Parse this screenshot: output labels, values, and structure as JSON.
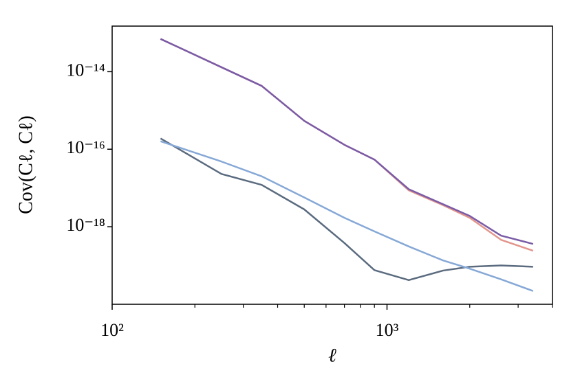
{
  "chart_data": {
    "type": "line",
    "x_label": "ℓ",
    "y_label": "Cov(Cℓ, Cℓ)",
    "x": [
      150,
      250,
      350,
      500,
      700,
      900,
      1200,
      1600,
      2000,
      2600,
      3400
    ],
    "series": [
      {
        "color": "#5b6b7f",
        "values": [
          1.9e-16,
          2.3e-17,
          1.2e-17,
          2.8e-18,
          3.8e-19,
          7.6e-20,
          4.2e-20,
          7.4e-20,
          9.3e-20,
          1e-19,
          9.3e-20
        ]
      },
      {
        "color": "#86a8d6",
        "values": [
          1.6e-16,
          4.8e-17,
          2e-17,
          5.7e-18,
          1.7e-18,
          7.6e-19,
          3.1e-19,
          1.35e-19,
          8.3e-20,
          4.4e-20,
          2.2e-20
        ]
      },
      {
        "color": "#e2958c",
        "values": [
          7e-14,
          1.3e-14,
          4.3e-15,
          5.4e-16,
          1.3e-16,
          5.4e-17,
          8.7e-18,
          3.6e-18,
          1.7e-18,
          4.6e-19,
          2.4e-19
        ]
      },
      {
        "color": "#7a5ba6",
        "values": [
          7e-14,
          1.3e-14,
          4.3e-15,
          5.4e-16,
          1.3e-16,
          5.4e-17,
          9.3e-18,
          3.8e-18,
          1.9e-18,
          5.9e-19,
          3.6e-19
        ]
      }
    ],
    "xscale": "log",
    "yscale": "log",
    "xlim": [
      100,
      4000
    ],
    "ylim": [
      1e-20,
      1.5e-13
    ],
    "xticks": [
      {
        "value": 100,
        "label": "10²"
      },
      {
        "value": 1000,
        "label": "10³"
      }
    ],
    "xminorticks": [
      200,
      300,
      400,
      500,
      600,
      700,
      800,
      900,
      2000,
      3000,
      4000
    ],
    "yticks": [
      {
        "value": 1e-18,
        "label": "10⁻¹⁸"
      },
      {
        "value": 1e-16,
        "label": "10⁻¹⁶"
      },
      {
        "value": 1e-14,
        "label": "10⁻¹⁴"
      }
    ],
    "grid": false
  }
}
